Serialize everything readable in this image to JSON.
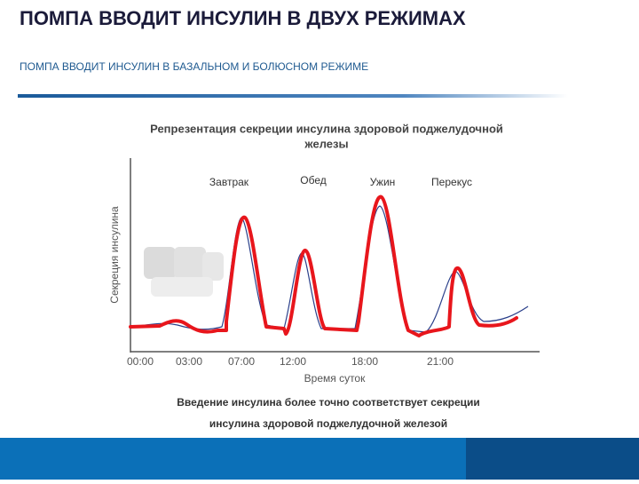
{
  "header": {
    "title": "ПОМПА ВВОДИТ ИНСУЛИН В ДВУХ РЕЖИМАХ",
    "subtitle": "ПОМПА ВВОДИТ ИНСУЛИН В БАЗАЛЬНОМ И БОЛЮСНОМ РЕЖИМЕ"
  },
  "chart": {
    "title_lines": [
      "Репрезентация секреции инсулина здоровой поджелудочной",
      "железы"
    ],
    "annotations": [
      "Завтрак",
      "Обед",
      "Ужин",
      "Перекус"
    ],
    "y_label": "Секреция инсулина",
    "x_label": "Время суток",
    "x_ticks": [
      "00:00",
      "03:00",
      "07:00",
      "12:00",
      "18:00",
      "21:00"
    ]
  },
  "footer": {
    "lines": [
      "Введение инсулина более точно соответствует секреции",
      "инсулина здоровой поджелудочной железой"
    ]
  }
}
